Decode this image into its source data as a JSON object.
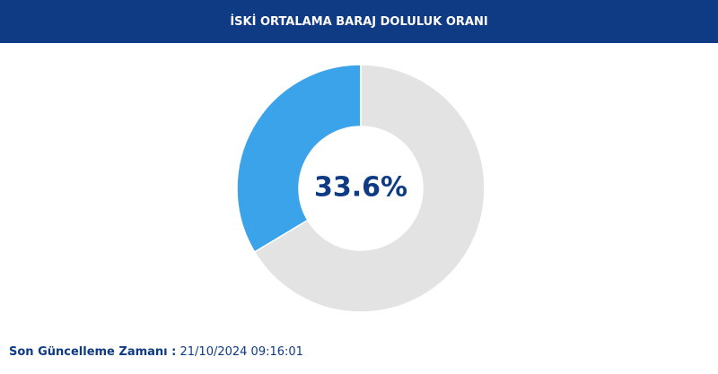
{
  "header": {
    "title": "İSKİ ORTALAMA BARAJ DOLULUK ORANI"
  },
  "chart_data": {
    "type": "donut",
    "categories": [
      null,
      null
    ],
    "values": [
      33.6,
      66.4
    ],
    "value_labels": [
      "33.6%",
      null
    ],
    "colors": [
      "#3ba3ea",
      "#e3e3e3"
    ]
  },
  "footer": {
    "label": "Son Güncelleme Zamanı :",
    "value": "21/10/2024 09:16:01"
  }
}
